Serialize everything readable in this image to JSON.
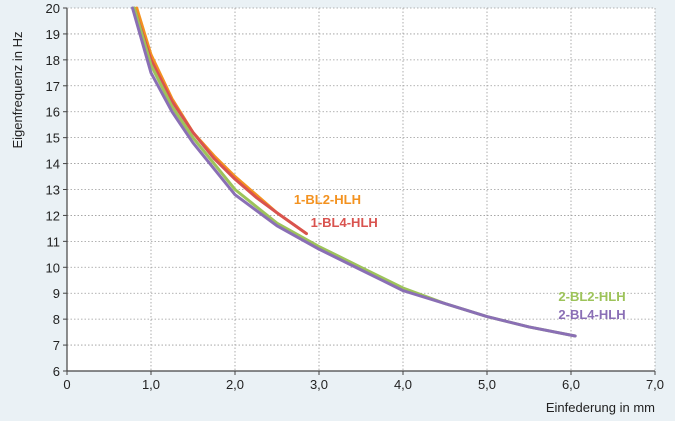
{
  "chart_data": {
    "type": "line",
    "title": "",
    "xlabel": "Einfederung in mm",
    "ylabel": "Eigenfrequenz in Hz",
    "xlim": [
      0,
      7
    ],
    "ylim": [
      6,
      20
    ],
    "x_ticks": [
      "0",
      "1,0",
      "2,0",
      "3,0",
      "4,0",
      "5,0",
      "6,0",
      "7,0"
    ],
    "x_tick_values": [
      0,
      1,
      2,
      3,
      4,
      5,
      6,
      7
    ],
    "y_ticks": [
      "6",
      "7",
      "8",
      "9",
      "10",
      "11",
      "12",
      "13",
      "14",
      "15",
      "16",
      "17",
      "18",
      "19",
      "20"
    ],
    "y_tick_values": [
      6,
      7,
      8,
      9,
      10,
      11,
      12,
      13,
      14,
      15,
      16,
      17,
      18,
      19,
      20
    ],
    "grid": true,
    "series": [
      {
        "name": "1-BL2-HLH",
        "color": "#f39220",
        "x": [
          0.83,
          1.0,
          1.25,
          1.5,
          1.75,
          2.0,
          2.25,
          2.5,
          2.85
        ],
        "y": [
          20.0,
          18.2,
          16.5,
          15.2,
          14.3,
          13.5,
          12.8,
          12.1,
          11.3
        ]
      },
      {
        "name": "1-BL4-HLH",
        "color": "#d9534f",
        "x": [
          0.8,
          1.0,
          1.25,
          1.5,
          1.75,
          2.0,
          2.25,
          2.5,
          2.85
        ],
        "y": [
          20.0,
          18.0,
          16.4,
          15.2,
          14.2,
          13.4,
          12.7,
          12.1,
          11.3
        ]
      },
      {
        "name": "2-BL2-HLH",
        "color": "#9dc35a",
        "x": [
          0.8,
          1.0,
          1.25,
          1.5,
          2.0,
          2.5,
          3.0,
          3.5,
          4.0,
          4.5,
          5.0,
          5.5,
          6.05
        ],
        "y": [
          20.0,
          17.8,
          16.2,
          15.0,
          13.0,
          11.7,
          10.8,
          10.0,
          9.2,
          8.6,
          8.1,
          7.7,
          7.35
        ]
      },
      {
        "name": "2-BL4-HLH",
        "color": "#8a6fb5",
        "x": [
          0.78,
          1.0,
          1.25,
          1.5,
          2.0,
          2.5,
          3.0,
          3.5,
          4.0,
          4.5,
          5.0,
          5.5,
          6.05
        ],
        "y": [
          20.0,
          17.5,
          16.0,
          14.8,
          12.8,
          11.6,
          10.7,
          9.9,
          9.1,
          8.6,
          8.1,
          7.7,
          7.35
        ]
      }
    ],
    "annotations": [
      {
        "text": "1-BL2-HLH",
        "color": "#f39220",
        "x": 3.1,
        "y": 12.45,
        "anchor": "middle"
      },
      {
        "text": "1-BL4-HLH",
        "color": "#d9534f",
        "x": 3.3,
        "y": 11.55,
        "anchor": "middle"
      },
      {
        "text": "2-BL2-HLH",
        "color": "#9dc35a",
        "x": 6.65,
        "y": 8.7,
        "anchor": "end"
      },
      {
        "text": "2-BL4-HLH",
        "color": "#8a6fb5",
        "x": 6.65,
        "y": 8.0,
        "anchor": "end"
      }
    ]
  }
}
